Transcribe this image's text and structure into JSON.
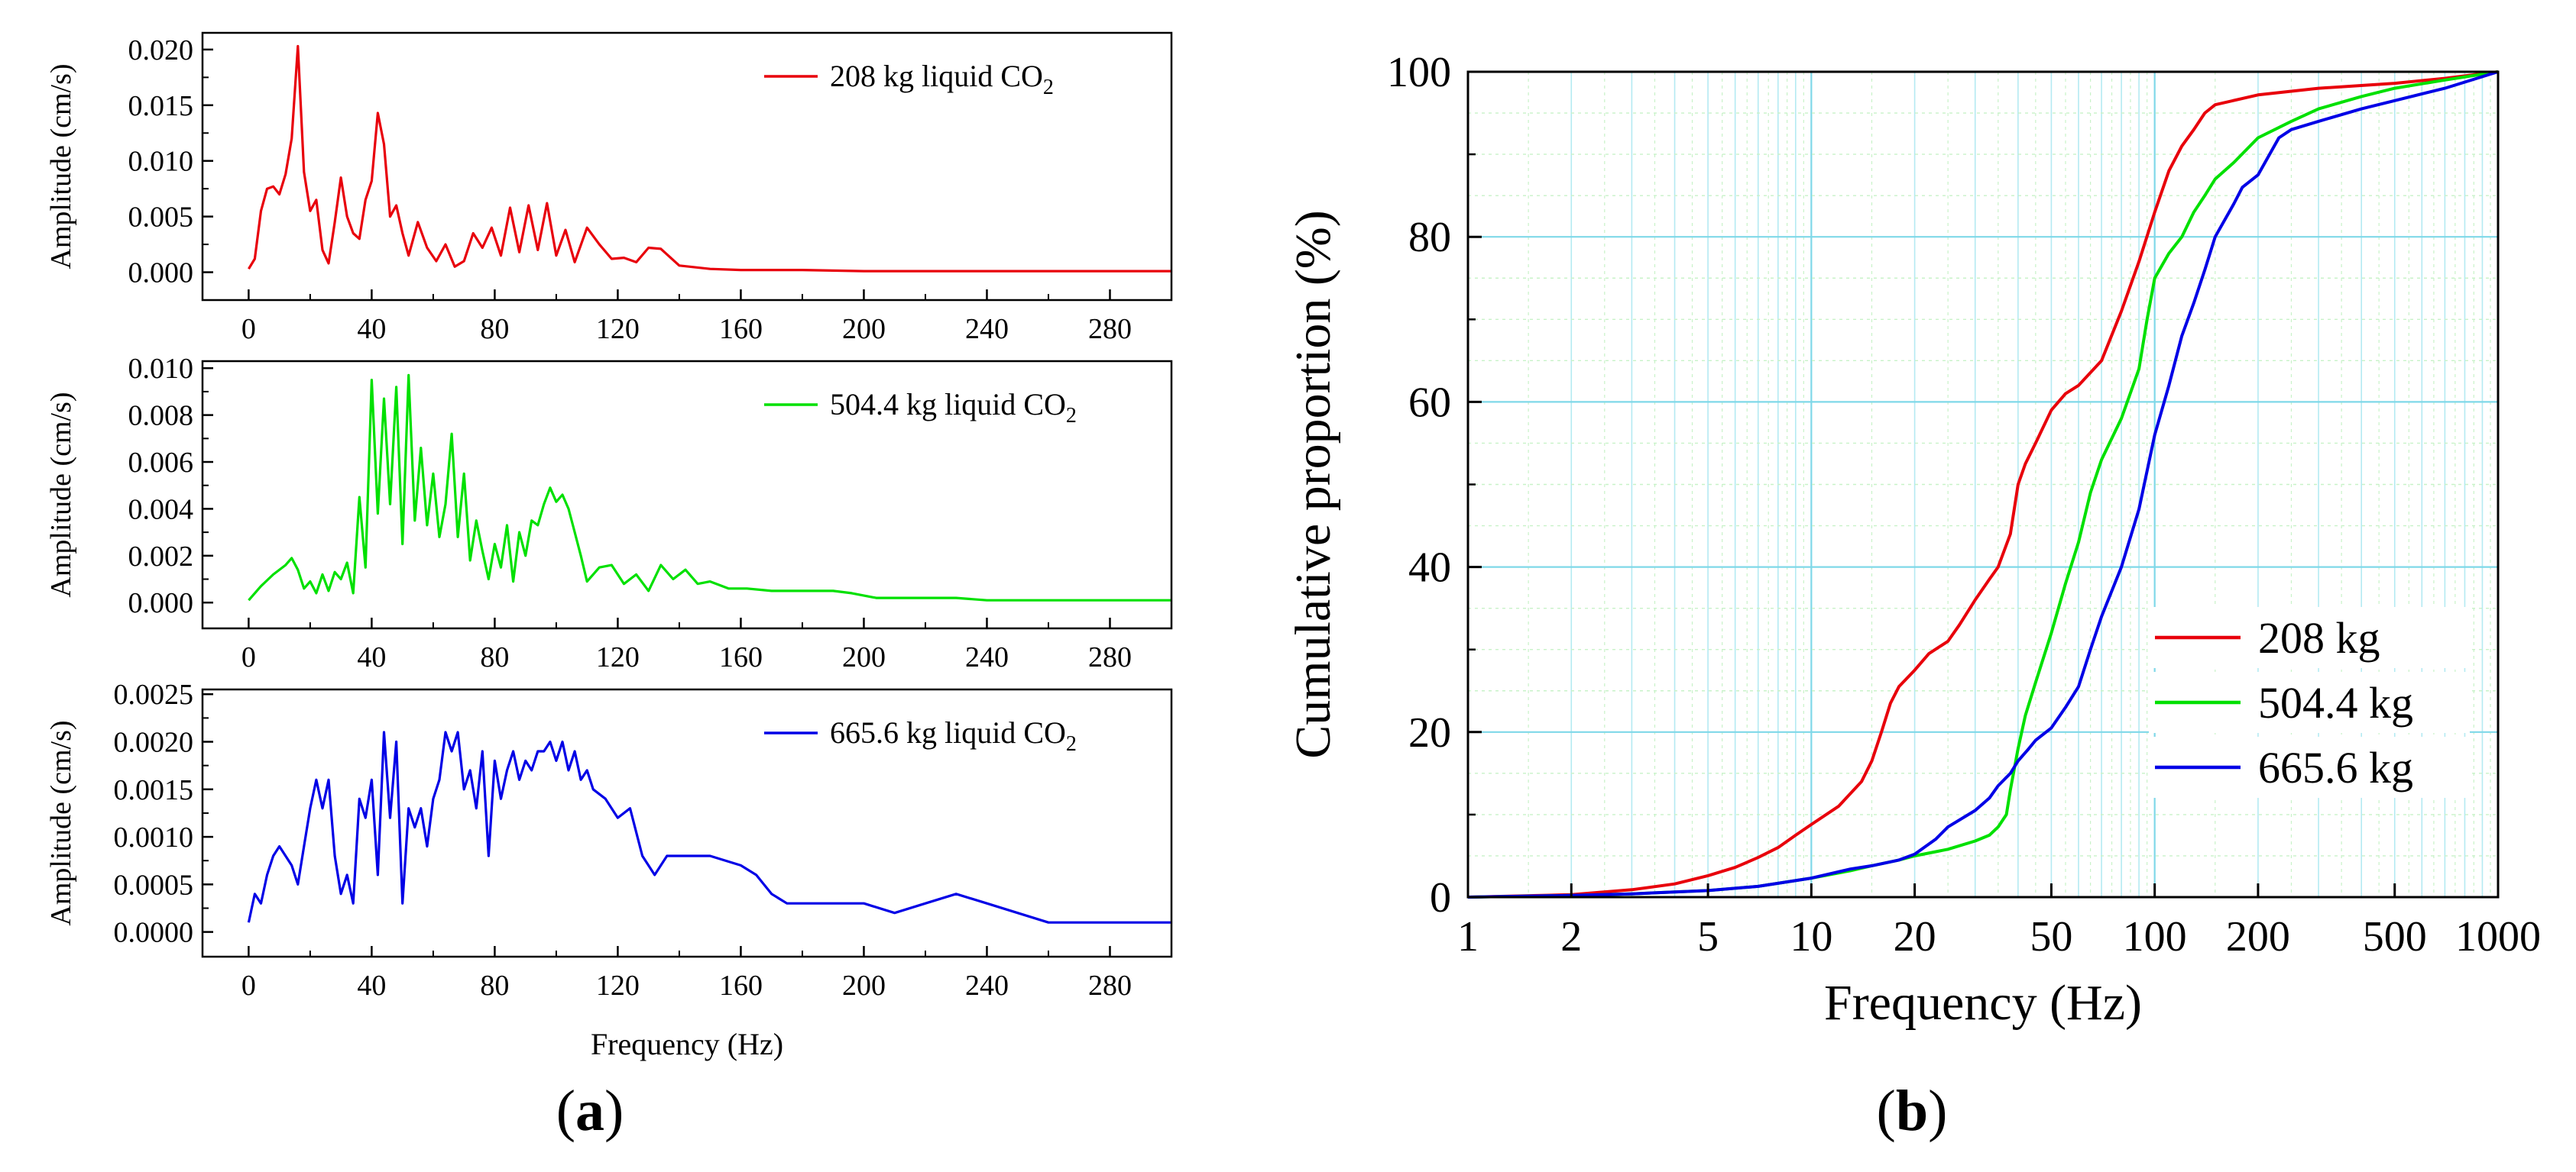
{
  "chart_data": [
    {
      "id": "a1",
      "type": "line",
      "panel": "a",
      "xlabel": "",
      "ylabel": "Amplitude (cm/s)",
      "xlim": [
        -15,
        300
      ],
      "ylim": [
        -0.0025,
        0.0215
      ],
      "xticks": [
        "0",
        "40",
        "80",
        "120",
        "160",
        "200",
        "240",
        "280"
      ],
      "yticks": [
        "0.000",
        "0.005",
        "0.010",
        "0.015",
        "0.020"
      ],
      "legend": {
        "text": "208 kg liquid CO",
        "sub": "2",
        "position": "top-right"
      },
      "color": "#e8000b",
      "x": [
        0,
        2,
        4,
        6,
        8,
        10,
        12,
        14,
        16,
        18,
        20,
        22,
        24,
        26,
        28,
        30,
        32,
        34,
        36,
        38,
        40,
        42,
        44,
        46,
        48,
        50,
        52,
        55,
        58,
        61,
        64,
        67,
        70,
        73,
        76,
        79,
        82,
        85,
        88,
        91,
        94,
        97,
        100,
        103,
        106,
        110,
        114,
        118,
        122,
        126,
        130,
        134,
        140,
        150,
        160,
        180,
        200,
        220,
        240,
        260,
        280,
        300
      ],
      "values": [
        0.0003,
        0.0012,
        0.0055,
        0.0075,
        0.0077,
        0.007,
        0.0088,
        0.012,
        0.0203,
        0.009,
        0.0055,
        0.0065,
        0.002,
        0.0008,
        0.0045,
        0.0085,
        0.005,
        0.0035,
        0.003,
        0.0065,
        0.0082,
        0.0143,
        0.0115,
        0.005,
        0.006,
        0.0035,
        0.0015,
        0.0045,
        0.0022,
        0.001,
        0.0025,
        0.0005,
        0.001,
        0.0035,
        0.0022,
        0.004,
        0.0015,
        0.0058,
        0.0018,
        0.006,
        0.002,
        0.0062,
        0.0015,
        0.0038,
        0.0009,
        0.004,
        0.0025,
        0.0012,
        0.0013,
        0.0009,
        0.0022,
        0.0021,
        0.0006,
        0.0003,
        0.0002,
        0.0002,
        0.0001,
        0.0001,
        0.0001,
        0.0001,
        0.0001,
        0.0001
      ]
    },
    {
      "id": "a2",
      "type": "line",
      "panel": "a",
      "xlabel": "",
      "ylabel": "Amplitude (cm/s)",
      "xlim": [
        -15,
        300
      ],
      "ylim": [
        -0.0011,
        0.0103
      ],
      "xticks": [
        "0",
        "40",
        "80",
        "120",
        "160",
        "200",
        "240",
        "280"
      ],
      "yticks": [
        "0.000",
        "0.002",
        "0.004",
        "0.006",
        "0.008",
        "0.010"
      ],
      "legend": {
        "text": "504.4 kg liquid CO",
        "sub": "2",
        "position": "top-right"
      },
      "color": "#00e000",
      "x": [
        0,
        4,
        8,
        12,
        14,
        16,
        18,
        20,
        22,
        24,
        26,
        28,
        30,
        32,
        34,
        36,
        38,
        40,
        42,
        44,
        46,
        48,
        50,
        52,
        54,
        56,
        58,
        60,
        62,
        64,
        66,
        68,
        70,
        72,
        74,
        76,
        78,
        80,
        82,
        84,
        86,
        88,
        90,
        92,
        94,
        96,
        98,
        100,
        102,
        104,
        106,
        108,
        110,
        114,
        118,
        122,
        126,
        130,
        134,
        138,
        142,
        146,
        150,
        156,
        162,
        170,
        180,
        190,
        196,
        204,
        212,
        220,
        230,
        240,
        260,
        280,
        300
      ],
      "values": [
        0.0001,
        0.0007,
        0.0012,
        0.0016,
        0.0019,
        0.0014,
        0.0006,
        0.0009,
        0.0004,
        0.0012,
        0.0005,
        0.0013,
        0.001,
        0.0017,
        0.0004,
        0.0045,
        0.0015,
        0.0095,
        0.0038,
        0.0087,
        0.0042,
        0.0092,
        0.0025,
        0.0097,
        0.0035,
        0.0066,
        0.0033,
        0.0055,
        0.0028,
        0.0042,
        0.0072,
        0.0028,
        0.0055,
        0.0018,
        0.0035,
        0.0022,
        0.001,
        0.0025,
        0.0015,
        0.0033,
        0.0009,
        0.003,
        0.002,
        0.0035,
        0.0033,
        0.0042,
        0.0049,
        0.0043,
        0.0046,
        0.004,
        0.003,
        0.002,
        0.0009,
        0.0015,
        0.0016,
        0.0008,
        0.0012,
        0.0005,
        0.0016,
        0.001,
        0.0014,
        0.0008,
        0.0009,
        0.0006,
        0.0006,
        0.0005,
        0.0005,
        0.0005,
        0.0004,
        0.0002,
        0.0002,
        0.0002,
        0.0002,
        0.0001,
        0.0001,
        0.0001,
        0.0001
      ]
    },
    {
      "id": "a3",
      "type": "line",
      "panel": "a",
      "xlabel": "Frequency (Hz)",
      "ylabel": "Amplitude (cm/s)",
      "xlim": [
        -15,
        300
      ],
      "ylim": [
        -0.00026,
        0.00255
      ],
      "xticks": [
        "0",
        "40",
        "80",
        "120",
        "160",
        "200",
        "240",
        "280"
      ],
      "yticks": [
        "0.0000",
        "0.0005",
        "0.0010",
        "0.0015",
        "0.0020",
        "0.0025"
      ],
      "legend": {
        "text": "665.6 kg liquid CO",
        "sub": "2",
        "position": "top-right"
      },
      "color": "#0000e6",
      "x": [
        0,
        2,
        4,
        6,
        8,
        10,
        12,
        14,
        16,
        18,
        20,
        22,
        24,
        26,
        28,
        30,
        32,
        34,
        36,
        38,
        40,
        42,
        44,
        46,
        48,
        50,
        52,
        54,
        56,
        58,
        60,
        62,
        64,
        66,
        68,
        70,
        72,
        74,
        76,
        78,
        80,
        82,
        84,
        86,
        88,
        90,
        92,
        94,
        96,
        98,
        100,
        102,
        104,
        106,
        108,
        110,
        112,
        116,
        120,
        124,
        128,
        132,
        136,
        140,
        150,
        160,
        165,
        170,
        175,
        180,
        190,
        200,
        210,
        220,
        230,
        240,
        250,
        260,
        270,
        280,
        290,
        300
      ],
      "values": [
        0.0001,
        0.0004,
        0.0003,
        0.0006,
        0.0008,
        0.0009,
        0.0008,
        0.0007,
        0.0005,
        0.0009,
        0.0013,
        0.0016,
        0.0013,
        0.0016,
        0.0008,
        0.0004,
        0.0006,
        0.0003,
        0.0014,
        0.0012,
        0.0016,
        0.0006,
        0.0021,
        0.0012,
        0.002,
        0.0003,
        0.0013,
        0.0011,
        0.0013,
        0.0009,
        0.0014,
        0.0016,
        0.0021,
        0.0019,
        0.0021,
        0.0015,
        0.0017,
        0.0013,
        0.0019,
        0.0008,
        0.0018,
        0.0014,
        0.0017,
        0.0019,
        0.0016,
        0.0018,
        0.0017,
        0.0019,
        0.0019,
        0.002,
        0.0018,
        0.002,
        0.0017,
        0.0019,
        0.0016,
        0.0017,
        0.0015,
        0.0014,
        0.0012,
        0.0013,
        0.0008,
        0.0006,
        0.0008,
        0.0008,
        0.0008,
        0.0007,
        0.0006,
        0.0004,
        0.0003,
        0.0003,
        0.0003,
        0.0003,
        0.0002,
        0.0003,
        0.0004,
        0.0003,
        0.0002,
        0.0001,
        0.0001,
        0.0001,
        0.0001,
        0.0001
      ]
    },
    {
      "id": "b",
      "type": "line",
      "panel": "b",
      "xscale": "log",
      "xlabel": "Frequency (Hz)",
      "ylabel": "Cumulative proportion (%)",
      "xlim": [
        1,
        1000
      ],
      "ylim": [
        0,
        100
      ],
      "grid": true,
      "xticks": [
        1,
        2,
        5,
        10,
        20,
        50,
        100,
        200,
        500,
        1000
      ],
      "xticklabels": [
        "1",
        "2",
        "5",
        "10",
        "20",
        "50",
        "100",
        "200",
        "500",
        "1000"
      ],
      "yticks": [
        "0",
        "20",
        "40",
        "60",
        "80",
        "100"
      ],
      "legend_position": "bottom-right",
      "series": [
        {
          "name": "208 kg",
          "color": "#e8000b",
          "x": [
            1,
            2,
            3,
            4,
            5,
            6,
            7,
            8,
            9,
            10,
            12,
            14,
            15,
            16,
            17,
            18,
            20,
            22,
            25,
            27,
            30,
            33,
            35,
            38,
            40,
            42,
            45,
            50,
            55,
            60,
            70,
            80,
            90,
            100,
            110,
            120,
            130,
            140,
            150,
            200,
            300,
            500,
            700,
            1000
          ],
          "values": [
            0,
            0.3,
            0.9,
            1.6,
            2.6,
            3.6,
            4.8,
            6,
            7.5,
            8.8,
            11,
            14,
            16.5,
            20,
            23.5,
            25.5,
            27.5,
            29.5,
            31,
            33,
            36,
            38.5,
            40,
            44,
            50,
            52.5,
            55,
            59,
            61,
            62,
            65,
            71,
            77,
            83,
            88,
            91,
            93,
            95,
            96,
            97.2,
            98,
            98.6,
            99.2,
            100
          ]
        },
        {
          "name": "504.4 kg",
          "color": "#00e000",
          "x": [
            1,
            2,
            3,
            5,
            7,
            10,
            13,
            15,
            18,
            20,
            25,
            30,
            33,
            35,
            37,
            38,
            40,
            42,
            45,
            50,
            55,
            60,
            65,
            70,
            80,
            90,
            95,
            100,
            110,
            120,
            130,
            140,
            150,
            170,
            200,
            250,
            300,
            400,
            500,
            700,
            1000
          ],
          "values": [
            0,
            0.2,
            0.4,
            0.8,
            1.3,
            2.3,
            3.2,
            3.8,
            4.5,
            5,
            5.8,
            6.8,
            7.5,
            8.5,
            10,
            13,
            18,
            22,
            26,
            32,
            38,
            43,
            49,
            53,
            58,
            64,
            70,
            75,
            78,
            80,
            83,
            85,
            87,
            89,
            92,
            94,
            95.5,
            97,
            98,
            99,
            100
          ]
        },
        {
          "name": "665.6 kg",
          "color": "#0000e6",
          "x": [
            1,
            2,
            3,
            5,
            7,
            10,
            13,
            15,
            18,
            20,
            23,
            25,
            30,
            33,
            35,
            38,
            40,
            43,
            45,
            50,
            55,
            60,
            65,
            70,
            80,
            90,
            100,
            110,
            120,
            130,
            140,
            150,
            170,
            180,
            200,
            230,
            250,
            300,
            400,
            500,
            700,
            1000
          ],
          "values": [
            0,
            0.2,
            0.4,
            0.8,
            1.3,
            2.3,
            3.4,
            3.8,
            4.5,
            5.2,
            7,
            8.5,
            10.5,
            12,
            13.5,
            15,
            16.5,
            18,
            19,
            20.5,
            23,
            25.5,
            30,
            34,
            40,
            47,
            56,
            62,
            68,
            72,
            76,
            80,
            84,
            86,
            87.5,
            92,
            93,
            94,
            95.5,
            96.5,
            98,
            100
          ]
        }
      ]
    }
  ],
  "panel_labels": {
    "a": "(a)",
    "a_letter": "a",
    "b": "(b)",
    "b_letter": "b"
  }
}
